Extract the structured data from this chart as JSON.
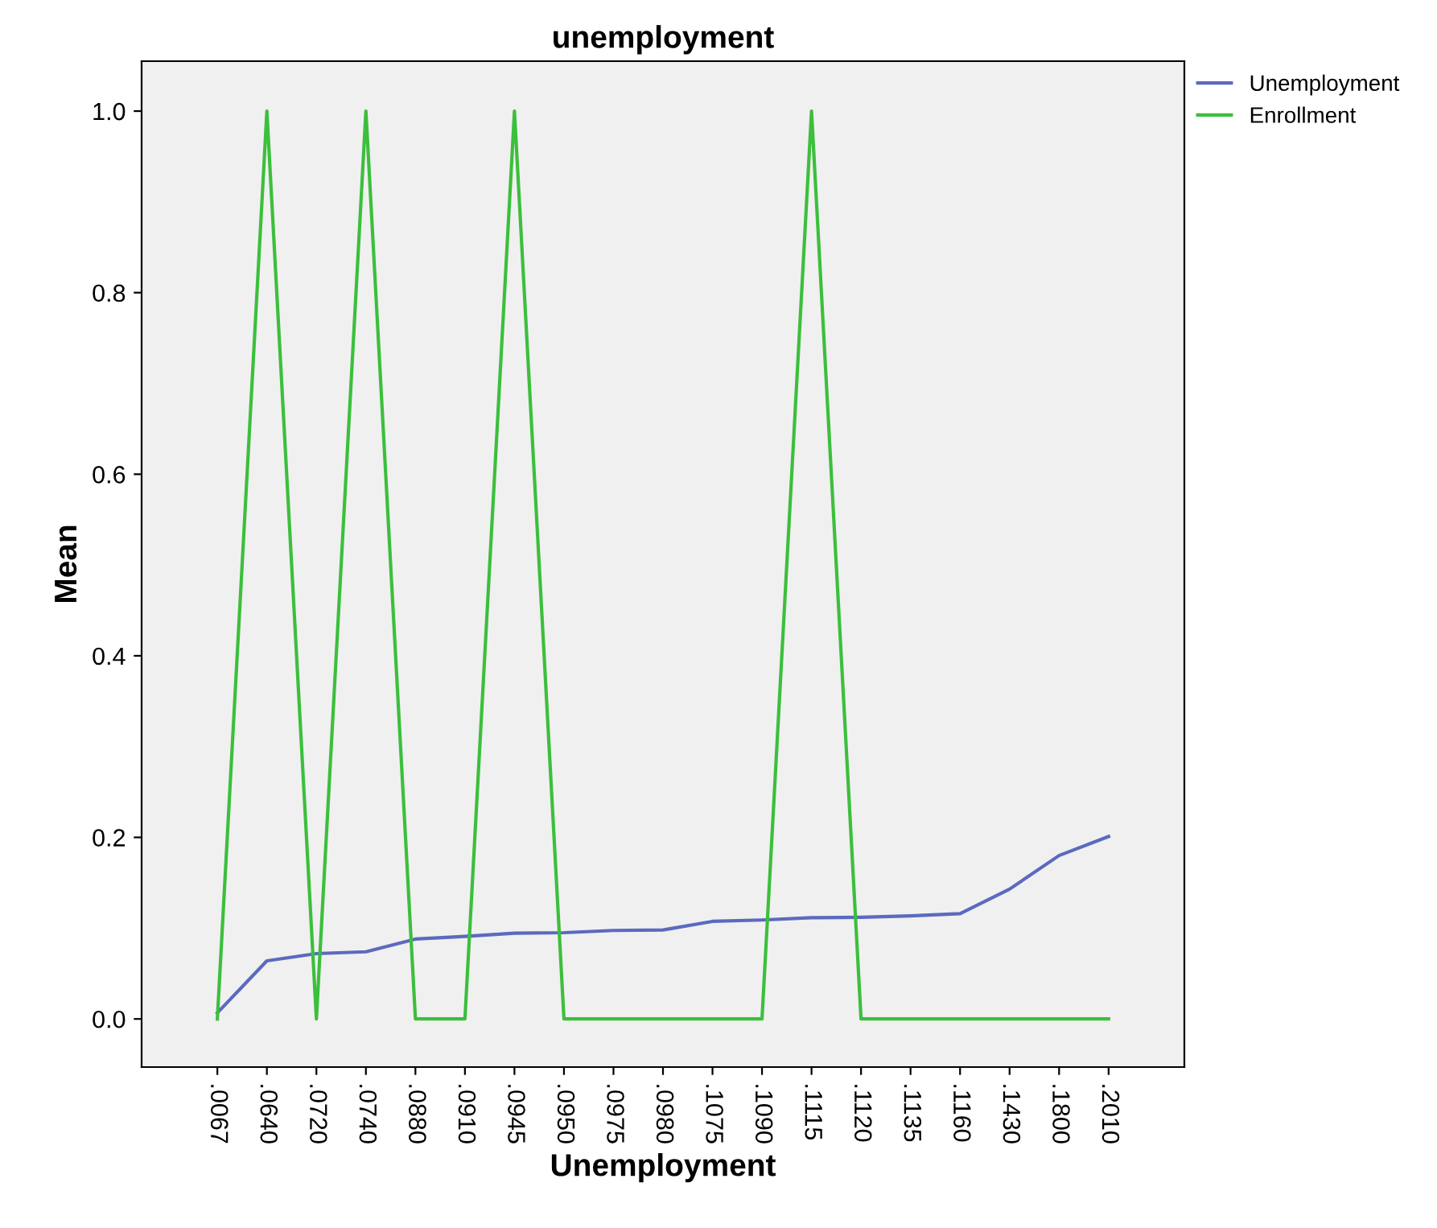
{
  "chart_data": {
    "type": "line",
    "title": "unemployment",
    "xlabel": "Unemployment",
    "ylabel": "Mean",
    "categories": [
      ".0067",
      ".0640",
      ".0720",
      ".0740",
      ".0880",
      ".0910",
      ".0945",
      ".0950",
      ".0975",
      ".0980",
      ".1075",
      ".1090",
      ".1115",
      ".1120",
      ".1135",
      ".1160",
      ".1430",
      ".1800",
      ".2010"
    ],
    "series": [
      {
        "name": "Unemployment",
        "color": "#5b6abf",
        "values": [
          0.0067,
          0.064,
          0.072,
          0.074,
          0.088,
          0.091,
          0.0945,
          0.095,
          0.0975,
          0.098,
          0.1075,
          0.109,
          0.1115,
          0.112,
          0.1135,
          0.116,
          0.143,
          0.18,
          0.201
        ]
      },
      {
        "name": "Enrollment",
        "color": "#3cbf3c",
        "values": [
          0,
          1,
          0,
          1,
          0,
          0,
          1,
          0,
          0,
          0,
          0,
          0,
          1,
          0,
          0,
          0,
          0,
          0,
          0
        ]
      }
    ],
    "ylim": [
      -0.053,
      1.055
    ],
    "yticks": [
      {
        "value": 0,
        "label": "0.0"
      },
      {
        "value": 0.2,
        "label": "0.2"
      },
      {
        "value": 0.4,
        "label": "0.4"
      },
      {
        "value": 0.6,
        "label": "0.6"
      },
      {
        "value": 0.8,
        "label": "0.8"
      },
      {
        "value": 1,
        "label": "1.0"
      }
    ],
    "grid": false,
    "legend": "top right",
    "marker": "none",
    "line_style": "solid"
  }
}
